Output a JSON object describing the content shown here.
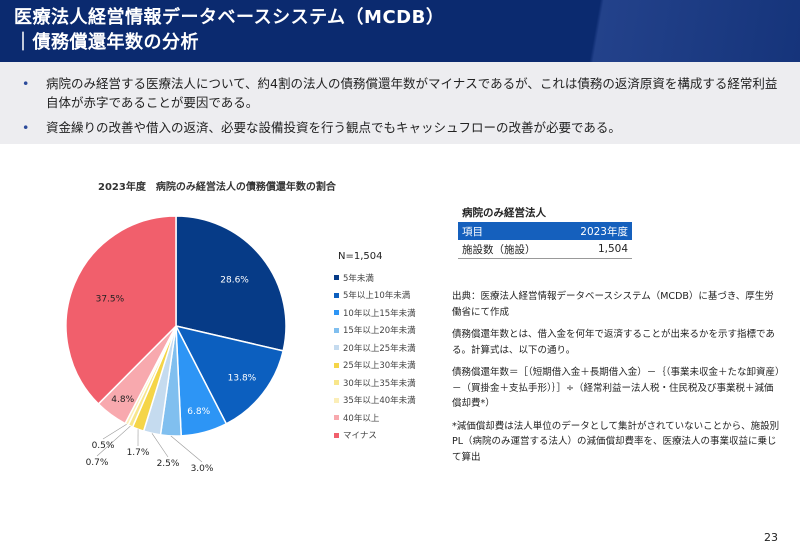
{
  "header": {
    "title_line1": "医療法人経営情報データベースシステム（MCDB）",
    "title_line2": "｜債務償還年数の分析"
  },
  "bullets": [
    "病院のみ経営する医療法人について、約4割の法人の債務償還年数がマイナスであるが、これは債務の返済原資を構成する経常利益自体が赤字であることが要因である。",
    "資金繰りの改善や借入の返済、必要な設備投資を行う観点でもキャッシュフローの改善が必要である。"
  ],
  "bullet_marker": "•",
  "n_label": "N=1,504",
  "chart_data": {
    "type": "pie",
    "title": "2023年度　病院のみ経営法人の債務償還年数の割合",
    "total_label": "N=1,504",
    "legend_position": "right",
    "categories": [
      "5年未満",
      "5年以上10年未満",
      "10年以上15年未満",
      "15年以上20年未満",
      "20年以上25年未満",
      "25年以上30年未満",
      "30年以上35年未満",
      "35年以上40年未満",
      "40年以上",
      "マイナス"
    ],
    "values": [
      28.6,
      13.8,
      6.8,
      3.0,
      2.5,
      1.7,
      0.7,
      0.5,
      4.8,
      37.5
    ],
    "data_labels": [
      "28.6%",
      "13.8%",
      "6.8%",
      "3.0%",
      "2.5%",
      "1.7%",
      "0.7%",
      "0.5%",
      "4.8%",
      "37.5%"
    ],
    "colors": [
      "#063b87",
      "#0c5fbf",
      "#2d95f5",
      "#80bfef",
      "#c5dbef",
      "#f5d548",
      "#f8e68b",
      "#fbeeb8",
      "#f8a9ae",
      "#f15f6c"
    ]
  },
  "table": {
    "title": "病院のみ経営法人",
    "headers": [
      "項目",
      "2023年度"
    ],
    "rows": [
      [
        "施設数（施設）",
        "1,504"
      ]
    ]
  },
  "notes": [
    "出典：医療法人経営情報データベースシステム（MCDB）に基づき、厚生労働省にて作成",
    "債務償還年数とは、借入金を何年で返済することが出来るかを示す指標である。計算式は、以下の通り。",
    "債務償還年数＝［（短期借入金＋長期借入金）－｛（事業未収金＋たな卸資産）－（買掛金＋支払手形）｝］÷（経常利益ー法人税・住民税及び事業税＋減価償却費*）",
    "*減価償却費は法人単位のデータとして集計がされていないことから、施設別PL（病院のみ運営する法人）の減価償却費率を、医療法人の事業収益に乗じて算出"
  ],
  "page_number": "23"
}
